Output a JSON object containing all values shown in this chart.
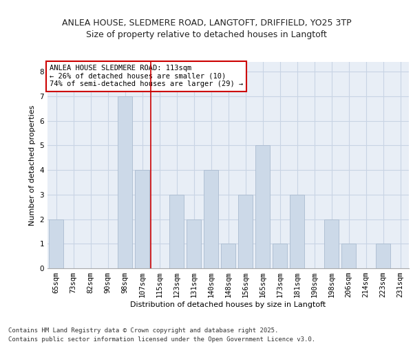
{
  "title_line1": "ANLEA HOUSE, SLEDMERE ROAD, LANGTOFT, DRIFFIELD, YO25 3TP",
  "title_line2": "Size of property relative to detached houses in Langtoft",
  "xlabel": "Distribution of detached houses by size in Langtoft",
  "ylabel": "Number of detached properties",
  "categories": [
    "65sqm",
    "73sqm",
    "82sqm",
    "90sqm",
    "98sqm",
    "107sqm",
    "115sqm",
    "123sqm",
    "131sqm",
    "140sqm",
    "148sqm",
    "156sqm",
    "165sqm",
    "173sqm",
    "181sqm",
    "190sqm",
    "198sqm",
    "206sqm",
    "214sqm",
    "223sqm",
    "231sqm"
  ],
  "values": [
    2,
    0,
    0,
    0,
    7,
    4,
    0,
    3,
    2,
    4,
    1,
    3,
    5,
    1,
    3,
    0,
    2,
    1,
    0,
    1,
    0
  ],
  "bar_color": "#ccd9e8",
  "bar_edgecolor": "#aabbd0",
  "vline_x": 5.5,
  "vline_color": "#cc0000",
  "annotation_text": "ANLEA HOUSE SLEDMERE ROAD: 113sqm\n← 26% of detached houses are smaller (10)\n74% of semi-detached houses are larger (29) →",
  "annotation_box_edgecolor": "#cc0000",
  "annotation_box_facecolor": "#ffffff",
  "ylim": [
    0,
    8.4
  ],
  "yticks": [
    0,
    1,
    2,
    3,
    4,
    5,
    6,
    7,
    8
  ],
  "grid_color": "#c8d4e4",
  "background_color": "#e8eef6",
  "footer_text": "Contains HM Land Registry data © Crown copyright and database right 2025.\nContains public sector information licensed under the Open Government Licence v3.0.",
  "title_fontsize": 9,
  "subtitle_fontsize": 9,
  "axis_label_fontsize": 8,
  "tick_fontsize": 7.5,
  "annotation_fontsize": 7.5,
  "footer_fontsize": 6.5
}
